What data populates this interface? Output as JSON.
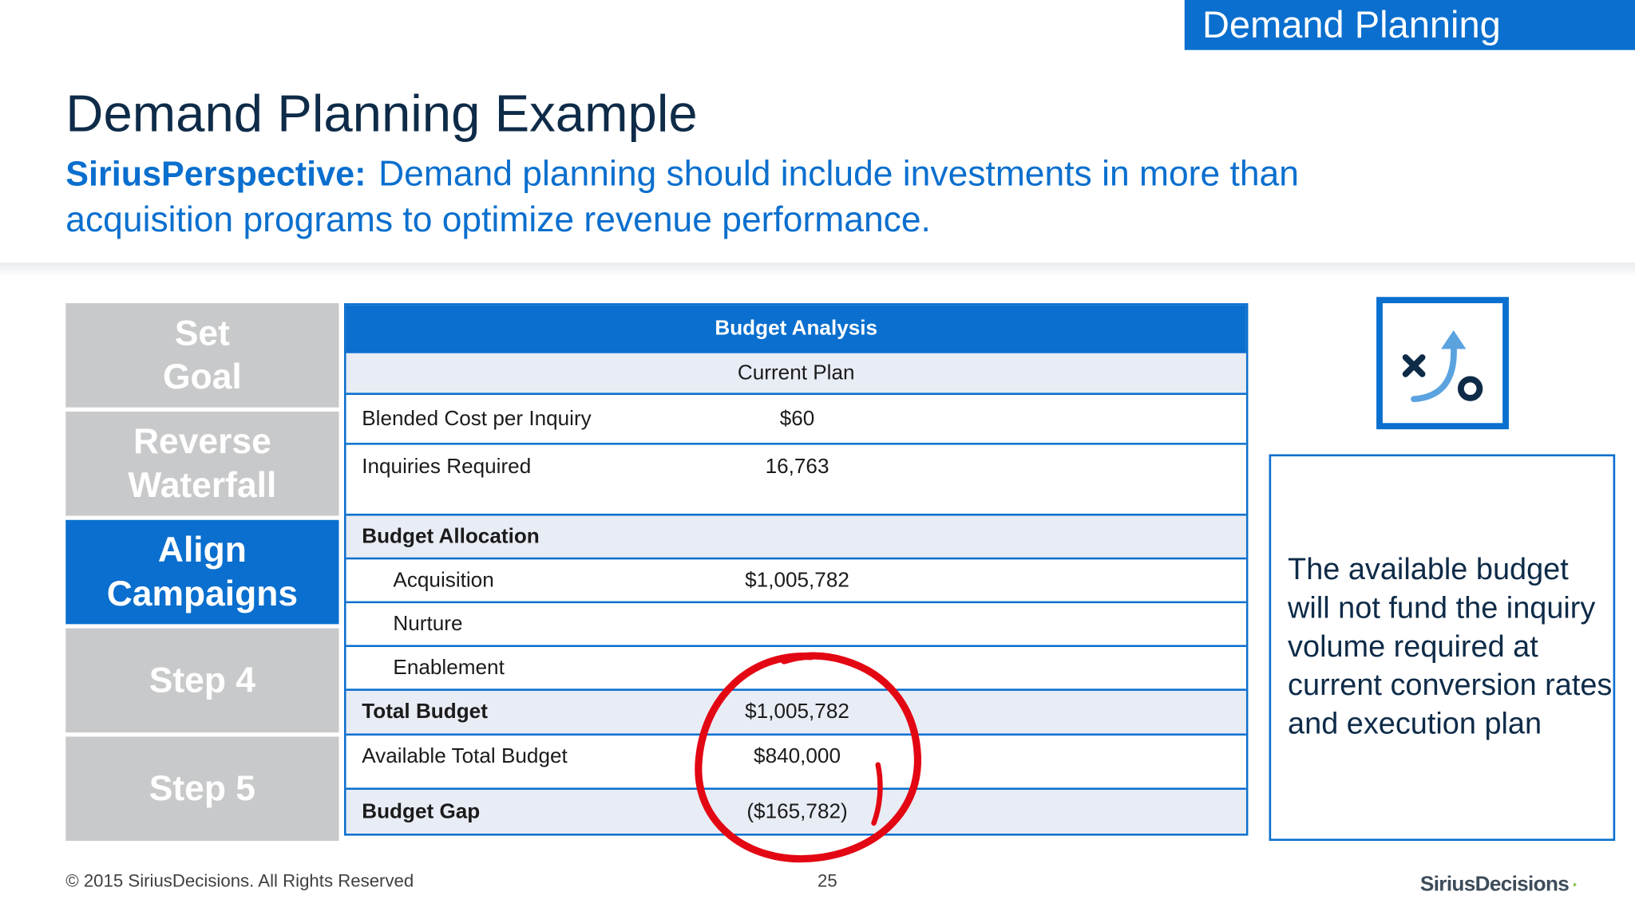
{
  "section_tab": "Demand Planning",
  "title": "Demand Planning Example",
  "perspective": {
    "lead": "SiriusPerspective:",
    "text": "Demand planning should include investments in more than acquisition programs to optimize revenue performance."
  },
  "steps": [
    {
      "label": "Set\nGoal",
      "active": false
    },
    {
      "label": "Reverse\nWaterfall",
      "active": false
    },
    {
      "label": "Align\nCampaigns",
      "active": true
    },
    {
      "label": "Step 4",
      "active": false
    },
    {
      "label": "Step 5",
      "active": false
    }
  ],
  "table": {
    "header": "Budget Analysis",
    "subheader": "Current Plan",
    "rows": {
      "cost_per_inquiry": {
        "label": "Blended Cost per Inquiry",
        "value": "$60"
      },
      "inquiries_required": {
        "label": "Inquiries Required",
        "value": "16,763"
      },
      "budget_allocation": {
        "label": "Budget Allocation",
        "value": ""
      },
      "acquisition": {
        "label": "Acquisition",
        "value": "$1,005,782"
      },
      "nurture": {
        "label": "Nurture",
        "value": ""
      },
      "enablement": {
        "label": "Enablement",
        "value": ""
      },
      "total_budget": {
        "label": "Total Budget",
        "value": "$1,005,782"
      },
      "available_total_budget": {
        "label": "Available Total Budget",
        "value": "$840,000"
      },
      "budget_gap": {
        "label": "Budget Gap",
        "value": "($165,782)"
      }
    }
  },
  "icon": "strategy-play-icon",
  "callout": "The available budget will not fund the inquiry volume required at current conversion rates and execution plan",
  "footer": {
    "copyright": "© 2015 SiriusDecisions. All Rights Reserved",
    "page": "25",
    "logo": "SiriusDecisions"
  },
  "colors": {
    "brand_blue": "#0a6fce",
    "step_gray": "#c8c9ca",
    "annotation_red": "#e30613"
  }
}
